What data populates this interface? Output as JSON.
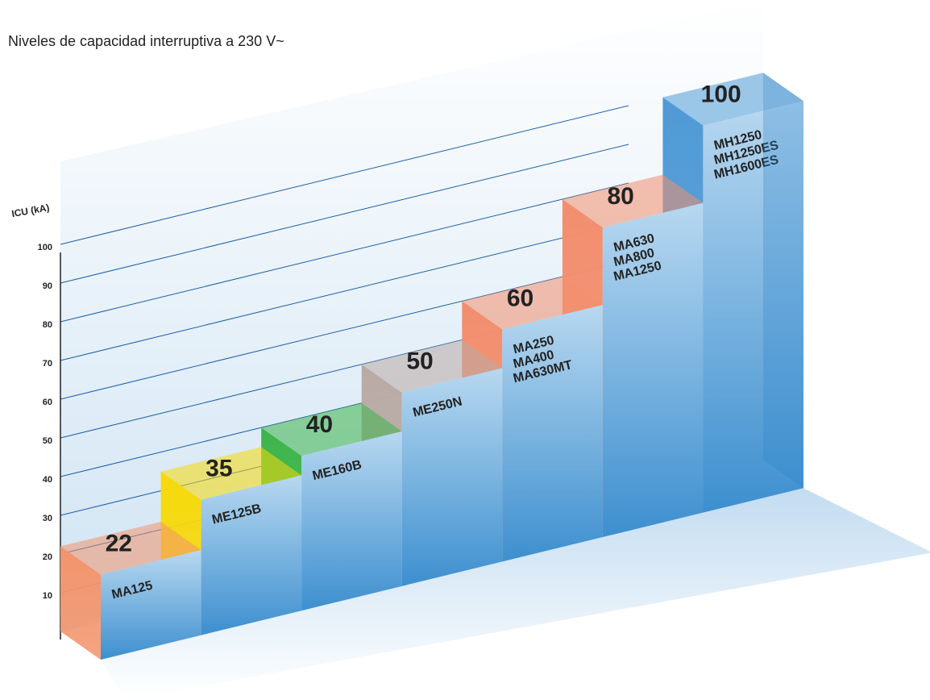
{
  "chart_data": {
    "type": "staircase",
    "title": "Niveles de capacidad interruptiva a 230 V~",
    "y_label": "ICU (kA)",
    "categories": [
      [
        "MA125"
      ],
      [
        "ME125B"
      ],
      [
        "ME160B"
      ],
      [
        "ME250N"
      ],
      [
        "MA250",
        "MA400",
        "MA630MT"
      ],
      [
        "MA630",
        "MA800",
        "MA1250"
      ],
      [
        "MH1250",
        "MH1250ES",
        "MH1600ES"
      ]
    ],
    "values": [
      22,
      35,
      40,
      50,
      60,
      80,
      100
    ],
    "colors": [
      "#f3946c",
      "#f6d90a",
      "#3db54a",
      "#b9aaa4",
      "#f28e6e",
      "#f28e6e",
      "#4f9ad6"
    ],
    "ylim": [
      0,
      100
    ],
    "yticks": [
      10,
      20,
      30,
      40,
      50,
      60,
      70,
      80,
      90,
      100
    ],
    "grid": true
  }
}
